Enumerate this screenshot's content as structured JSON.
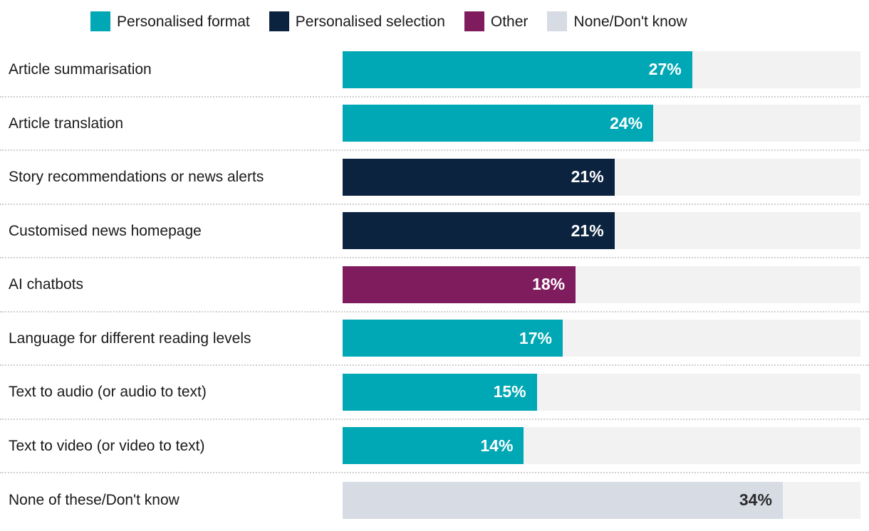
{
  "chart_data": {
    "type": "bar",
    "orientation": "horizontal",
    "xlim": [
      0,
      40
    ],
    "grid": false,
    "legend_position": "top",
    "legend": [
      {
        "label": "Personalised format",
        "color": "#00a7b4"
      },
      {
        "label": "Personalised selection",
        "color": "#0c2340"
      },
      {
        "label": "Other",
        "color": "#7f1c5e"
      },
      {
        "label": "None/Don't know",
        "color": "#d7dbe4"
      }
    ],
    "rows": [
      {
        "label": "Article summarisation",
        "value": 27,
        "display": "27%",
        "group": 0
      },
      {
        "label": "Article translation",
        "value": 24,
        "display": "24%",
        "group": 0
      },
      {
        "label": "Story recommendations or news alerts",
        "value": 21,
        "display": "21%",
        "group": 1
      },
      {
        "label": "Customised news homepage",
        "value": 21,
        "display": "21%",
        "group": 1
      },
      {
        "label": "AI chatbots",
        "value": 18,
        "display": "18%",
        "group": 2
      },
      {
        "label": "Language for different reading levels",
        "value": 17,
        "display": "17%",
        "group": 0
      },
      {
        "label": "Text to audio (or audio to text)",
        "value": 15,
        "display": "15%",
        "group": 0
      },
      {
        "label": "Text to video (or video to text)",
        "value": 14,
        "display": "14%",
        "group": 0
      },
      {
        "label": "None of these/Don't know",
        "value": 34,
        "display": "34%",
        "group": 3
      }
    ],
    "colors": {
      "track": "#f2f2f2",
      "value_label_light": "#ffffff",
      "value_label_dark": "#2b2b2b",
      "category_label": "#1a1a1a"
    }
  }
}
